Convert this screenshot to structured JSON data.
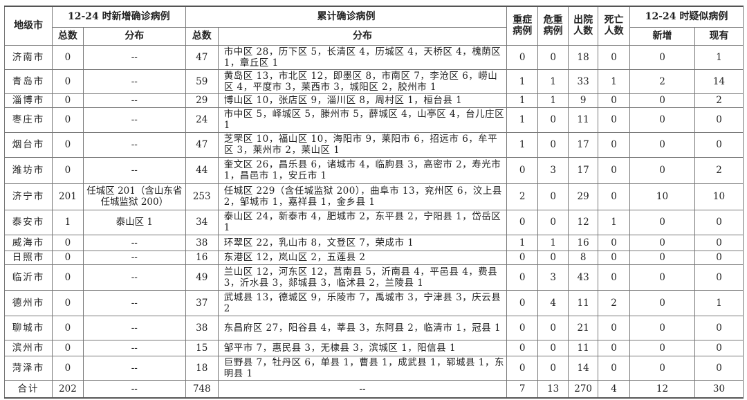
{
  "headers": {
    "city": "地级市",
    "new_group": "12-24 时新增确诊病例",
    "cum_group": "累计确诊病例",
    "total": "总数",
    "dist": "分布",
    "severe": "重症病例",
    "critical": "危重病例",
    "discharged": "出院人数",
    "deaths": "死亡人数",
    "suspect_group": "12-24 时疑似病例",
    "suspect_new": "新增",
    "suspect_current": "现有"
  },
  "rows": [
    {
      "city": "济南市",
      "new_total": "0",
      "new_dist": "--",
      "cum_total": "47",
      "cum_dist": "市中区 28，历下区 5，长清区 4，历城区 4，天桥区 4，槐荫区 1，章丘区 1",
      "severe": "0",
      "critical": "0",
      "discharged": "18",
      "deaths": "0",
      "s_new": "0",
      "s_cur": "1"
    },
    {
      "city": "青岛市",
      "new_total": "0",
      "new_dist": "--",
      "cum_total": "59",
      "cum_dist": "黄岛区 13，市北区 12，即墨区 8，市南区 7，李沧区 6，崂山区 4，平度市 3，莱西市 3，城阳区 2，胶州市 1",
      "severe": "1",
      "critical": "1",
      "discharged": "33",
      "deaths": "1",
      "s_new": "2",
      "s_cur": "14"
    },
    {
      "city": "淄博市",
      "new_total": "0",
      "new_dist": "--",
      "cum_total": "29",
      "cum_dist": "博山区 10，张店区 9，淄川区 8，周村区 1，桓台县 1",
      "severe": "1",
      "critical": "1",
      "discharged": "9",
      "deaths": "0",
      "s_new": "0",
      "s_cur": "2"
    },
    {
      "city": "枣庄市",
      "new_total": "0",
      "new_dist": "--",
      "cum_total": "24",
      "cum_dist": "市中区 5，峄城区 5，滕州市 5，薛城区 4，山亭区 4，台儿庄区 1",
      "severe": "1",
      "critical": "0",
      "discharged": "11",
      "deaths": "0",
      "s_new": "0",
      "s_cur": "0"
    },
    {
      "city": "烟台市",
      "new_total": "0",
      "new_dist": "--",
      "cum_total": "47",
      "cum_dist": "芝罘区 10，福山区 10，海阳市 9，莱阳市 6，招远市 6，牟平区 3，莱州市 2，莱山区 1",
      "severe": "1",
      "critical": "0",
      "discharged": "17",
      "deaths": "0",
      "s_new": "0",
      "s_cur": "0"
    },
    {
      "city": "潍坊市",
      "new_total": "0",
      "new_dist": "--",
      "cum_total": "44",
      "cum_dist": "奎文区 26，昌乐县 6，诸城市 4，临朐县 3，高密市 2，寿光市 1，昌邑市 1，安丘市 1",
      "severe": "0",
      "critical": "3",
      "discharged": "17",
      "deaths": "0",
      "s_new": "0",
      "s_cur": "2"
    },
    {
      "city": "济宁市",
      "new_total": "201",
      "new_dist": "任城区 201（含山东省任城监狱 200）",
      "cum_total": "253",
      "cum_dist": "任城区 229（含任城监狱 200），曲阜市 13，兖州区 6，汶上县 2，邹城市 1，嘉祥县 1，金乡县 1",
      "severe": "2",
      "critical": "0",
      "discharged": "29",
      "deaths": "0",
      "s_new": "10",
      "s_cur": "10"
    },
    {
      "city": "泰安市",
      "new_total": "1",
      "new_dist": "泰山区 1",
      "cum_total": "34",
      "cum_dist": "泰山区 24，新泰市 4，肥城市 2，东平县 2，宁阳县 1，岱岳区 1",
      "severe": "0",
      "critical": "0",
      "discharged": "12",
      "deaths": "1",
      "s_new": "0",
      "s_cur": "0"
    },
    {
      "city": "威海市",
      "new_total": "0",
      "new_dist": "--",
      "cum_total": "38",
      "cum_dist": "环翠区 22，乳山市 8，文登区 7，荣成市 1",
      "severe": "1",
      "critical": "1",
      "discharged": "16",
      "deaths": "0",
      "s_new": "0",
      "s_cur": "0"
    },
    {
      "city": "日照市",
      "new_total": "0",
      "new_dist": "--",
      "cum_total": "16",
      "cum_dist": "东港区 12，岚山区 2，五莲县 2",
      "severe": "0",
      "critical": "0",
      "discharged": "8",
      "deaths": "0",
      "s_new": "0",
      "s_cur": "0"
    },
    {
      "city": "临沂市",
      "new_total": "0",
      "new_dist": "--",
      "cum_total": "49",
      "cum_dist": "兰山区 12，河东区 12，莒南县 5，沂南县 4，平邑县 4，费县 3，沂水县 3，郯城县 3，临沭县 2，兰陵县 1",
      "severe": "0",
      "critical": "3",
      "discharged": "43",
      "deaths": "0",
      "s_new": "0",
      "s_cur": "0"
    },
    {
      "city": "德州市",
      "new_total": "0",
      "new_dist": "--",
      "cum_total": "37",
      "cum_dist": "武城县 13，德城区 9，乐陵市 7，禹城市 3，宁津县 3，庆云县 2",
      "severe": "0",
      "critical": "4",
      "discharged": "11",
      "deaths": "2",
      "s_new": "0",
      "s_cur": "1"
    },
    {
      "city": "聊城市",
      "new_total": "0",
      "new_dist": "--",
      "cum_total": "38",
      "cum_dist": "东昌府区 27，阳谷县 4，莘县 3，东阿县 2，临清市 1，冠县 1",
      "severe": "0",
      "critical": "0",
      "discharged": "21",
      "deaths": "0",
      "s_new": "0",
      "s_cur": "0"
    },
    {
      "city": "滨州市",
      "new_total": "0",
      "new_dist": "--",
      "cum_total": "15",
      "cum_dist": "邹平市 7，惠民县 3，无棣县 3，滨城区 1，阳信县 1",
      "severe": "0",
      "critical": "0",
      "discharged": "11",
      "deaths": "0",
      "s_new": "0",
      "s_cur": "0"
    },
    {
      "city": "菏泽市",
      "new_total": "0",
      "new_dist": "--",
      "cum_total": "18",
      "cum_dist": "巨野县 7，牡丹区 6，单县 1，曹县 1，成武县 1，郓城县 1，东明县 1",
      "severe": "0",
      "critical": "0",
      "discharged": "14",
      "deaths": "0",
      "s_new": "0",
      "s_cur": "0"
    }
  ],
  "total": {
    "city": "合计",
    "new_total": "202",
    "new_dist": "--",
    "cum_total": "748",
    "cum_dist": "--",
    "severe": "7",
    "critical": "13",
    "discharged": "270",
    "deaths": "4",
    "s_new": "12",
    "s_cur": "30"
  }
}
